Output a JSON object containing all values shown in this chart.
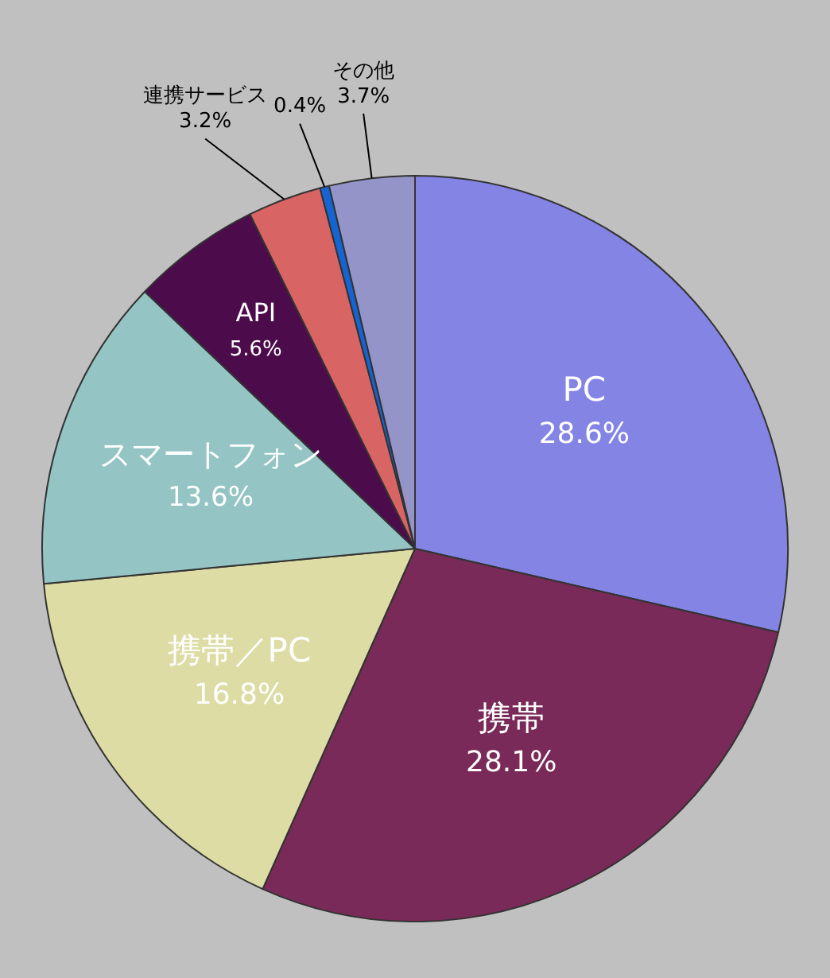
{
  "chart_data": {
    "type": "pie",
    "categories": [
      "PC",
      "携帯",
      "携帯／PC",
      "スマートフォン",
      "API",
      "連携サービス",
      null,
      "その他"
    ],
    "values": [
      28.6,
      28.1,
      16.8,
      13.6,
      5.6,
      3.2,
      0.4,
      3.7
    ],
    "colors": [
      "#8484e4",
      "#7a2a58",
      "#dcdca4",
      "#94c4c4",
      "#4c0c4c",
      "#d86464",
      "#1464d4",
      "#9494c8"
    ],
    "value_labels": [
      "28.6%",
      "28.1%",
      "16.8%",
      "13.6%",
      "5.6%",
      "3.2%",
      "0.4%",
      "3.7%"
    ],
    "legend": false
  }
}
